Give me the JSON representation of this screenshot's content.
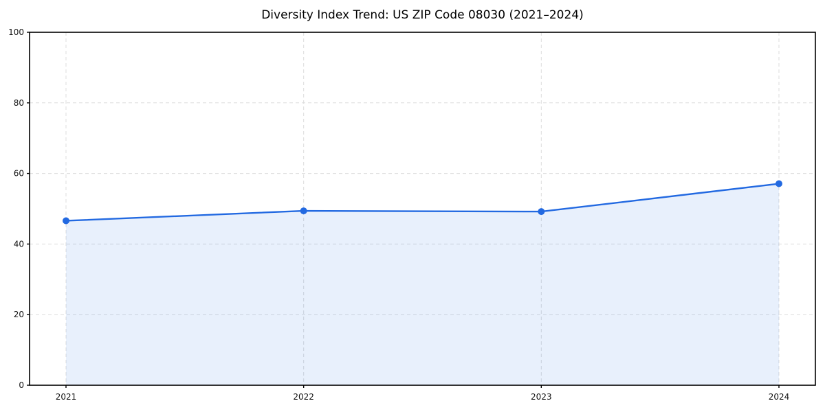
{
  "title": "Diversity Index Trend: US ZIP Code 08030 (2021–2024)",
  "colors": {
    "line": "#2269e1",
    "fill": "#2269e1",
    "fill_opacity": 0.1,
    "grid": "#dcdcdc",
    "axis": "#000000",
    "text": "#111111",
    "background": "#ffffff"
  },
  "chart_data": {
    "type": "line",
    "area_fill_to_zero": true,
    "title": "Diversity Index Trend: US ZIP Code 08030 (2021–2024)",
    "xlabel": "",
    "ylabel": "",
    "categories": [
      "2021",
      "2022",
      "2023",
      "2024"
    ],
    "values": [
      46.6,
      49.4,
      49.2,
      57.1
    ],
    "series_name": "Diversity Index",
    "ylim": [
      0,
      100
    ],
    "yticks": [
      0,
      20,
      40,
      60,
      80,
      100
    ],
    "grid": true,
    "grid_style": "dashed",
    "legend": "none",
    "marker": "circle"
  }
}
